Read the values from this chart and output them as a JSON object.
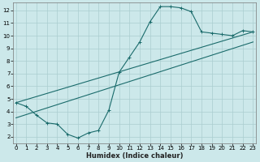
{
  "xlabel": "Humidex (Indice chaleur)",
  "bg_color": "#cce8ea",
  "grid_color": "#aacdd0",
  "line_color": "#1a6b6b",
  "line1_x": [
    0,
    1,
    2,
    3,
    4,
    5,
    6,
    7,
    8,
    9,
    10,
    11,
    12,
    13,
    14,
    15,
    16,
    17,
    18,
    19,
    20,
    21,
    22,
    23
  ],
  "line1_y": [
    4.7,
    4.4,
    3.7,
    3.1,
    3.0,
    2.2,
    1.9,
    2.3,
    2.5,
    4.1,
    7.1,
    8.3,
    9.5,
    11.1,
    12.3,
    12.3,
    12.2,
    11.9,
    10.3,
    10.2,
    10.1,
    10.0,
    10.4,
    10.3
  ],
  "line2_x": [
    0,
    23
  ],
  "line2_y": [
    4.7,
    10.3
  ],
  "line3_x": [
    0,
    23
  ],
  "line3_y": [
    3.5,
    9.5
  ],
  "xlim": [
    -0.3,
    23.3
  ],
  "ylim": [
    1.5,
    12.6
  ],
  "xticks": [
    0,
    1,
    2,
    3,
    4,
    5,
    6,
    7,
    8,
    9,
    10,
    11,
    12,
    13,
    14,
    15,
    16,
    17,
    18,
    19,
    20,
    21,
    22,
    23
  ],
  "yticks": [
    2,
    3,
    4,
    5,
    6,
    7,
    8,
    9,
    10,
    11,
    12
  ],
  "tick_fontsize": 5.0,
  "xlabel_fontsize": 6.0
}
